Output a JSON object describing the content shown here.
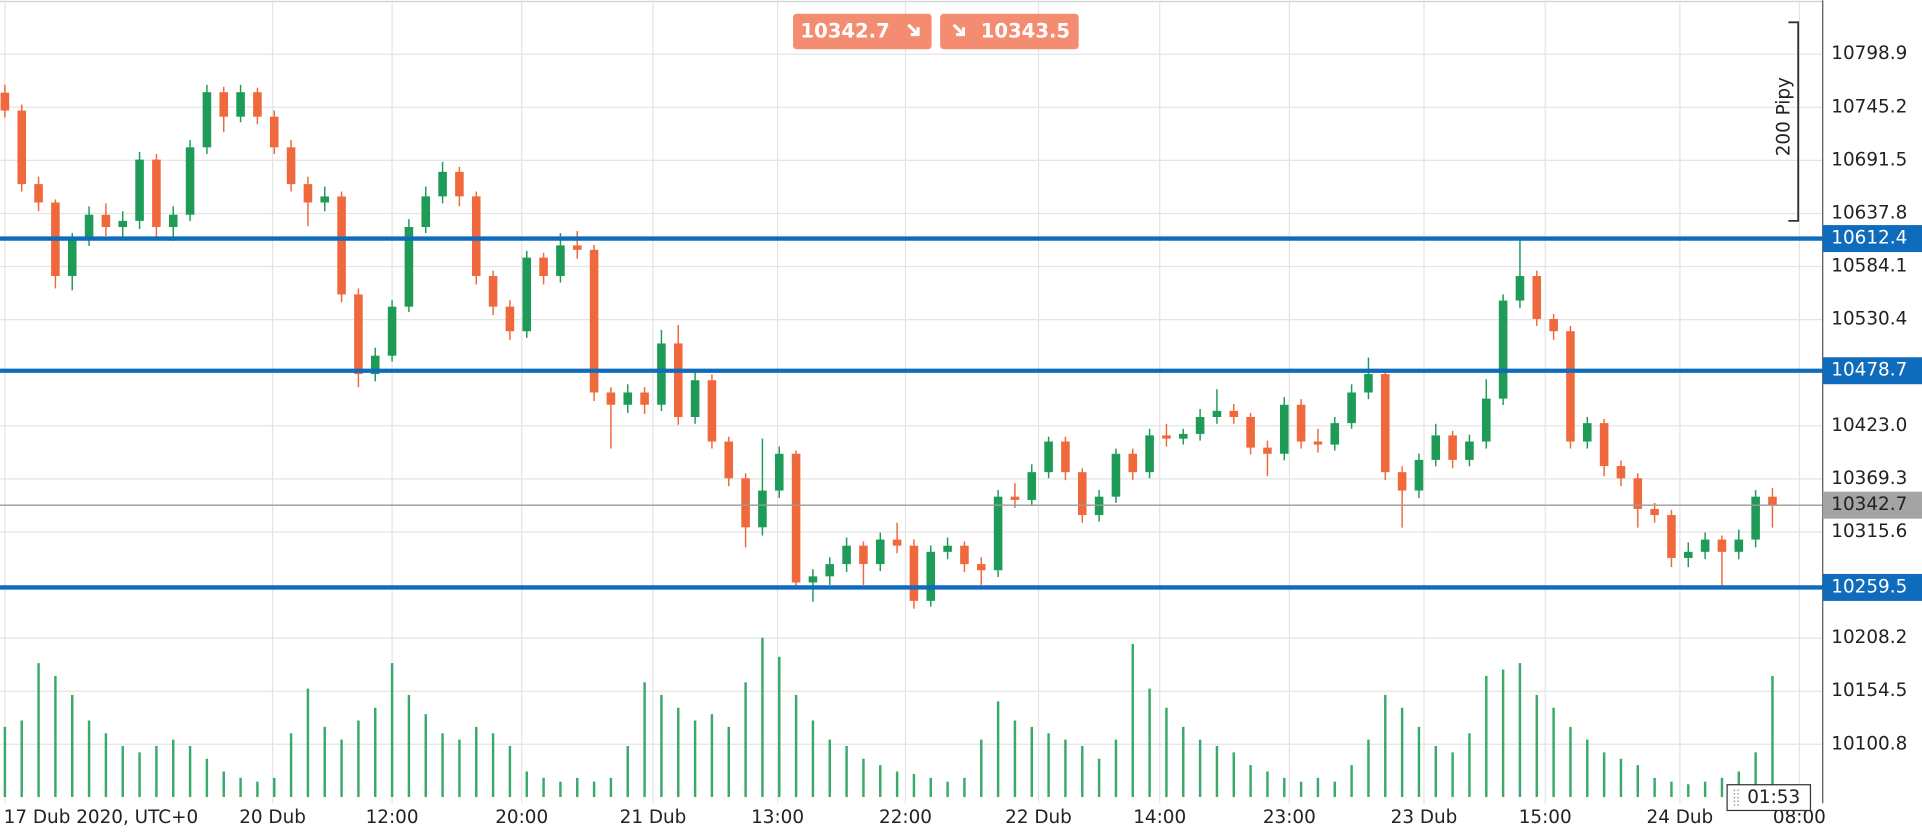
{
  "chart_data": {
    "type": "candlestick",
    "candles": [
      [
        10760.0,
        10768.0,
        10735.0,
        10741.9
      ],
      [
        10741.9,
        10748.0,
        10660.0,
        10667.5
      ],
      [
        10667.5,
        10675.0,
        10640.0,
        10648.9
      ],
      [
        10648.9,
        10652.0,
        10562.0,
        10574.5
      ],
      [
        10574.5,
        10618.0,
        10560.0,
        10611.7
      ],
      [
        10611.7,
        10645.0,
        10605.0,
        10636.5
      ],
      [
        10636.5,
        10648.0,
        10615.0,
        10624.1
      ],
      [
        10624.1,
        10640.0,
        10612.0,
        10630.3
      ],
      [
        10630.3,
        10700.0,
        10622.0,
        10692.3
      ],
      [
        10692.3,
        10698.0,
        10612.0,
        10624.1
      ],
      [
        10624.1,
        10645.0,
        10610.0,
        10636.5
      ],
      [
        10636.5,
        10712.0,
        10630.0,
        10704.7
      ],
      [
        10704.7,
        10768.0,
        10698.0,
        10760.5
      ],
      [
        10760.5,
        10766.0,
        10720.0,
        10735.7
      ],
      [
        10735.7,
        10768.0,
        10730.0,
        10760.5
      ],
      [
        10760.5,
        10765.0,
        10728.0,
        10735.7
      ],
      [
        10735.7,
        10742.0,
        10698.0,
        10704.7
      ],
      [
        10704.7,
        10712.0,
        10660.0,
        10667.5
      ],
      [
        10667.5,
        10675.0,
        10625.0,
        10648.9
      ],
      [
        10648.9,
        10665.0,
        10640.0,
        10655.0
      ],
      [
        10655.0,
        10660.0,
        10548.0,
        10555.9
      ],
      [
        10555.9,
        10562.0,
        10462.0,
        10475.3
      ],
      [
        10475.3,
        10502.0,
        10468.0,
        10493.9
      ],
      [
        10493.9,
        10550.0,
        10488.0,
        10543.5
      ],
      [
        10543.5,
        10632.0,
        10538.0,
        10624.1
      ],
      [
        10624.1,
        10665.0,
        10618.0,
        10655.1
      ],
      [
        10655.1,
        10690.0,
        10648.0,
        10679.9
      ],
      [
        10679.9,
        10685.0,
        10645.0,
        10655.1
      ],
      [
        10655.1,
        10660.0,
        10566.0,
        10574.5
      ],
      [
        10574.5,
        10580.0,
        10535.0,
        10543.5
      ],
      [
        10543.5,
        10550.0,
        10510.0,
        10518.7
      ],
      [
        10518.7,
        10600.0,
        10512.0,
        10593.1
      ],
      [
        10593.1,
        10598.0,
        10566.0,
        10574.5
      ],
      [
        10574.5,
        10618.0,
        10568.0,
        10605.5
      ],
      [
        10605.5,
        10620.0,
        10592.0,
        10601.0
      ],
      [
        10601.0,
        10606.0,
        10448.0,
        10456.7
      ],
      [
        10456.7,
        10462.0,
        10400.0,
        10444.3
      ],
      [
        10444.3,
        10465.0,
        10436.0,
        10456.7
      ],
      [
        10456.7,
        10462.0,
        10435.0,
        10444.3
      ],
      [
        10444.3,
        10520.0,
        10438.0,
        10506.3
      ],
      [
        10506.3,
        10525.0,
        10424.0,
        10431.9
      ],
      [
        10431.9,
        10478.0,
        10425.0,
        10469.1
      ],
      [
        10469.1,
        10475.0,
        10400.0,
        10407.1
      ],
      [
        10407.1,
        10412.0,
        10362.0,
        10369.9
      ],
      [
        10369.9,
        10375.0,
        10300.0,
        10320.3
      ],
      [
        10320.3,
        10410.0,
        10312.0,
        10357.5
      ],
      [
        10357.5,
        10402.0,
        10350.0,
        10394.7
      ],
      [
        10394.7,
        10398.0,
        10258.0,
        10264.5
      ],
      [
        10264.5,
        10278.0,
        10245.0,
        10270.7
      ],
      [
        10270.7,
        10290.0,
        10262.0,
        10283.1
      ],
      [
        10283.1,
        10310.0,
        10275.0,
        10301.7
      ],
      [
        10301.7,
        10306.0,
        10262.0,
        10283.1
      ],
      [
        10283.1,
        10315.0,
        10276.0,
        10307.9
      ],
      [
        10307.9,
        10325.0,
        10294.0,
        10301.7
      ],
      [
        10301.7,
        10308.0,
        10238.0,
        10245.9
      ],
      [
        10245.9,
        10302.0,
        10240.0,
        10295.5
      ],
      [
        10295.5,
        10310.0,
        10288.0,
        10301.7
      ],
      [
        10301.7,
        10306.0,
        10275.0,
        10283.1
      ],
      [
        10283.1,
        10290.0,
        10262.0,
        10276.9
      ],
      [
        10276.9,
        10358.0,
        10270.0,
        10351.3
      ],
      [
        10351.3,
        10365.0,
        10340.0,
        10348.0
      ],
      [
        10348.0,
        10384.0,
        10342.0,
        10376.1
      ],
      [
        10376.1,
        10412.0,
        10370.0,
        10407.1
      ],
      [
        10407.1,
        10412.0,
        10368.0,
        10376.1
      ],
      [
        10376.1,
        10380.0,
        10325.0,
        10332.7
      ],
      [
        10332.7,
        10358.0,
        10326.0,
        10351.3
      ],
      [
        10351.3,
        10400.0,
        10345.0,
        10394.7
      ],
      [
        10394.7,
        10400.0,
        10368.0,
        10376.1
      ],
      [
        10376.1,
        10420.0,
        10370.0,
        10413.3
      ],
      [
        10413.3,
        10425.0,
        10402.0,
        10410.0
      ],
      [
        10410.0,
        10420.0,
        10404.0,
        10414.8
      ],
      [
        10414.8,
        10440.0,
        10408.0,
        10431.9
      ],
      [
        10431.9,
        10460.0,
        10425.0,
        10438.1
      ],
      [
        10438.1,
        10445.0,
        10425.0,
        10431.9
      ],
      [
        10431.9,
        10436.0,
        10394.0,
        10400.9
      ],
      [
        10400.9,
        10408.0,
        10372.0,
        10394.7
      ],
      [
        10394.7,
        10452.0,
        10388.0,
        10444.3
      ],
      [
        10444.3,
        10450.0,
        10400.0,
        10407.1
      ],
      [
        10407.1,
        10420.0,
        10396.0,
        10404.0
      ],
      [
        10404.0,
        10432.0,
        10398.0,
        10425.7
      ],
      [
        10425.7,
        10465.0,
        10420.0,
        10456.7
      ],
      [
        10456.7,
        10492.0,
        10450.0,
        10475.3
      ],
      [
        10475.3,
        10480.0,
        10368.0,
        10376.1
      ],
      [
        10376.1,
        10382.0,
        10320.0,
        10357.5
      ],
      [
        10357.5,
        10395.0,
        10350.0,
        10388.5
      ],
      [
        10388.5,
        10425.0,
        10382.0,
        10413.3
      ],
      [
        10413.3,
        10418.0,
        10380.0,
        10388.5
      ],
      [
        10388.5,
        10414.0,
        10382.0,
        10407.1
      ],
      [
        10407.1,
        10470.0,
        10400.0,
        10450.5
      ],
      [
        10450.5,
        10556.0,
        10444.0,
        10549.7
      ],
      [
        10549.7,
        10612.0,
        10542.0,
        10574.5
      ],
      [
        10574.5,
        10580.0,
        10524.0,
        10531.1
      ],
      [
        10531.1,
        10536.0,
        10510.0,
        10518.7
      ],
      [
        10518.7,
        10524.0,
        10400.0,
        10407.1
      ],
      [
        10407.1,
        10432.0,
        10400.0,
        10425.7
      ],
      [
        10425.7,
        10430.0,
        10372.0,
        10382.3
      ],
      [
        10382.3,
        10388.0,
        10362.0,
        10369.9
      ],
      [
        10369.9,
        10375.0,
        10320.0,
        10338.9
      ],
      [
        10338.9,
        10345.0,
        10325.0,
        10332.7
      ],
      [
        10332.7,
        10338.0,
        10280.0,
        10289.3
      ],
      [
        10289.3,
        10305.0,
        10280.0,
        10295.5
      ],
      [
        10295.5,
        10315.0,
        10288.0,
        10307.9
      ],
      [
        10307.9,
        10312.0,
        10260.0,
        10295.5
      ],
      [
        10295.5,
        10318.0,
        10288.0,
        10307.9
      ],
      [
        10307.9,
        10358.0,
        10300.0,
        10351.3
      ],
      [
        10351.3,
        10360.0,
        10320.0,
        10342.7
      ]
    ],
    "volumes": [
      55,
      60,
      105,
      95,
      80,
      60,
      50,
      40,
      35,
      40,
      45,
      40,
      30,
      20,
      15,
      12,
      15,
      50,
      85,
      55,
      45,
      60,
      70,
      105,
      80,
      65,
      50,
      45,
      55,
      50,
      40,
      20,
      15,
      12,
      15,
      12,
      15,
      40,
      90,
      80,
      70,
      60,
      65,
      55,
      90,
      125,
      110,
      80,
      60,
      45,
      40,
      30,
      25,
      20,
      18,
      15,
      12,
      15,
      45,
      75,
      60,
      55,
      50,
      45,
      40,
      30,
      45,
      120,
      85,
      70,
      55,
      45,
      40,
      35,
      25,
      20,
      15,
      12,
      15,
      12,
      25,
      45,
      80,
      70,
      55,
      40,
      35,
      50,
      95,
      100,
      105,
      80,
      70,
      55,
      45,
      35,
      30,
      25,
      15,
      12,
      10,
      12,
      15,
      20,
      35,
      95
    ],
    "up_color": "#1e9b57",
    "down_color": "#f0693c",
    "volume_color": "#3aa96b",
    "ylim": [
      10041.3,
      10853.5
    ],
    "yticks": [
      10798.9,
      10745.2,
      10691.5,
      10637.8,
      10584.1,
      10530.4,
      {
        "value": 10423.0,
        "label": "10423.0"
      },
      10369.3,
      10315.6,
      10208.2,
      10154.5,
      10100.8
    ],
    "xticks": [
      {
        "value": 0,
        "label": "17 Dub 2020, UTC+0"
      },
      {
        "value": 15.9,
        "label": "20 Dub"
      },
      {
        "value": 23.0,
        "label": "12:00"
      },
      {
        "value": 30.7,
        "label": "20:00"
      },
      {
        "value": 38.5,
        "label": "21 Dub"
      },
      {
        "value": 45.9,
        "label": "13:00"
      },
      {
        "value": 53.5,
        "label": "22:00"
      },
      {
        "value": 61.4,
        "label": "22 Dub"
      },
      {
        "value": 68.6,
        "label": "14:00"
      },
      {
        "value": 76.3,
        "label": "23:00"
      },
      {
        "value": 84.3,
        "label": "23 Dub"
      },
      {
        "value": 91.5,
        "label": "15:00"
      },
      {
        "value": 99.5,
        "label": "24 Dub"
      },
      {
        "value": 106.6,
        "label": "08:00"
      }
    ],
    "grid": true,
    "levels": [
      10612.4,
      10478.7,
      10259.5
    ],
    "level_color": "#0f6cbd",
    "last_price": 10342.7,
    "bid": 10342.7,
    "ask": 10343.5,
    "ruler_label": "200 Pipy",
    "time_label": "01:53"
  }
}
